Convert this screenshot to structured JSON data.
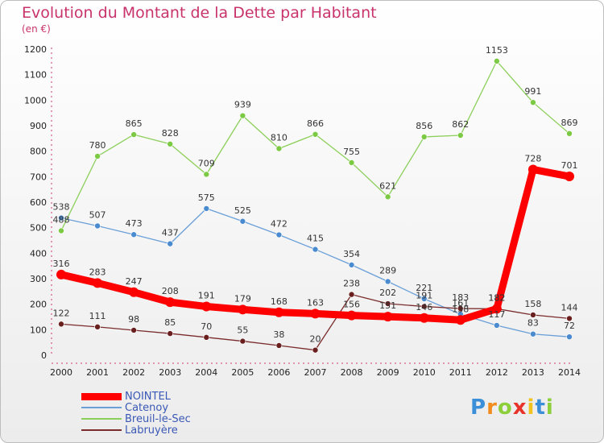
{
  "title": "Evolution du Montant de la Dette par Habitant",
  "unit": "(en €)",
  "logo": {
    "p": "P",
    "r": "r",
    "o": "o",
    "x": "x",
    "i1": "i",
    "t": "t",
    "i2": "i"
  },
  "chart_data": {
    "type": "line",
    "x": [
      "2000",
      "2001",
      "2002",
      "2003",
      "2004",
      "2005",
      "2006",
      "2007",
      "2008",
      "2009",
      "2010",
      "2011",
      "2012",
      "2013",
      "2014"
    ],
    "ylim": [
      0,
      1200
    ],
    "yticks": [
      0,
      100,
      200,
      300,
      400,
      500,
      600,
      700,
      800,
      900,
      1000,
      1100,
      1200
    ],
    "grid": false,
    "legend": "bottom-left",
    "series": [
      {
        "name": "NOINTEL",
        "color": "#ff0000",
        "values": [
          316,
          283,
          247,
          208,
          191,
          179,
          168,
          163,
          156,
          151,
          146,
          138,
          182,
          728,
          701
        ]
      },
      {
        "name": "Catenoy",
        "color": "#6a9fd8",
        "values": [
          538,
          507,
          473,
          437,
          575,
          525,
          472,
          415,
          354,
          289,
          221,
          161,
          117,
          83,
          72
        ]
      },
      {
        "name": "Breuil-le-Sec",
        "color": "#8ccf5a",
        "values": [
          488,
          780,
          865,
          828,
          709,
          939,
          810,
          866,
          755,
          621,
          856,
          862,
          1153,
          991,
          869
        ]
      },
      {
        "name": "Labruyère",
        "color": "#7a2c2c",
        "values": [
          122,
          111,
          98,
          85,
          70,
          55,
          38,
          20,
          238,
          202,
          191,
          183,
          182,
          158,
          144
        ]
      }
    ],
    "labels": [
      {
        "series": 0,
        "labels": [
          "316",
          "283",
          "247",
          "208",
          "191",
          "179",
          "168",
          "163",
          "156",
          "151",
          "146",
          "138",
          "182",
          "728",
          "701"
        ]
      },
      {
        "series": 1,
        "labels": [
          "538",
          "507",
          "473",
          "437",
          "575",
          "525",
          "472",
          "415",
          "354",
          "289",
          "221",
          "161",
          "117",
          "83",
          "72"
        ]
      },
      {
        "series": 2,
        "labels": [
          "488",
          "780",
          "865",
          "828",
          "709",
          "939",
          "810",
          "866",
          "755",
          "621",
          "856",
          "862",
          "1153",
          "991",
          "869"
        ]
      },
      {
        "series": 3,
        "labels": [
          "122",
          "111",
          "98",
          "85",
          "70",
          "55",
          "38",
          "20",
          "238",
          "202",
          "191",
          "183",
          "182",
          "158",
          "144"
        ]
      }
    ]
  }
}
